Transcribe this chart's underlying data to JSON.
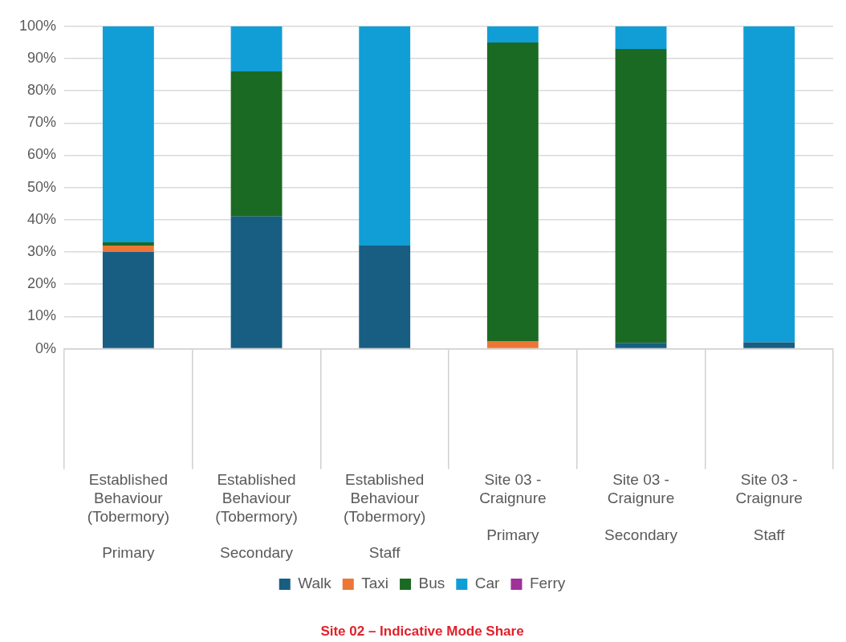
{
  "chart_data": {
    "type": "bar",
    "title": "Site 02 – Indicative Mode Share",
    "categories": [
      "Established Behaviour (Tobermory)\nPrimary",
      "Established Behaviour (Tobermory)\nSecondary",
      "Established Behaviour (Tobermory)\nStaff",
      "Site 03 - Craignure\nPrimary",
      "Site 03 - Craignure\nSecondary",
      "Site 03 - Craignure\nStaff"
    ],
    "series": [
      {
        "name": "Walk",
        "color": "#175e82",
        "values": [
          30,
          41,
          32,
          0,
          1.8,
          2
        ]
      },
      {
        "name": "Taxi",
        "color": "#ed7636",
        "values": [
          2,
          0,
          0,
          2.4,
          0,
          0
        ]
      },
      {
        "name": "Bus",
        "color": "#1b6a23",
        "values": [
          1,
          45,
          0,
          92.6,
          91.2,
          0
        ]
      },
      {
        "name": "Car",
        "color": "#119ed6",
        "values": [
          67,
          14,
          68,
          5,
          7,
          98
        ]
      },
      {
        "name": "Ferry",
        "color": "#a0309a",
        "values": [
          0,
          0,
          0,
          0,
          0,
          0
        ]
      }
    ],
    "stacked": true,
    "ylim": [
      0,
      100
    ],
    "yticks": [
      {
        "value": 0,
        "label": "0%"
      },
      {
        "value": 10,
        "label": "10%"
      },
      {
        "value": 20,
        "label": "20%"
      },
      {
        "value": 30,
        "label": "30%"
      },
      {
        "value": 40,
        "label": "40%"
      },
      {
        "value": 50,
        "label": "50%"
      },
      {
        "value": 60,
        "label": "60%"
      },
      {
        "value": 70,
        "label": "70%"
      },
      {
        "value": 80,
        "label": "80%"
      },
      {
        "value": 90,
        "label": "90%"
      },
      {
        "value": 100,
        "label": "100%"
      }
    ],
    "grid": "y",
    "legend": "bottom"
  }
}
